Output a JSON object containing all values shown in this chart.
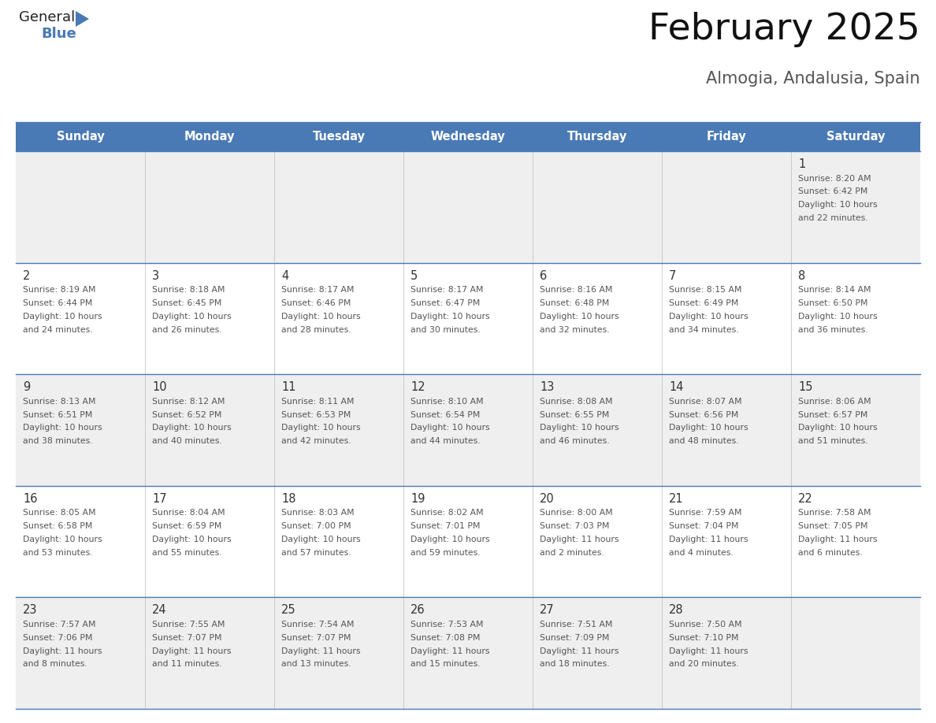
{
  "title": "February 2025",
  "subtitle": "Almogia, Andalusia, Spain",
  "header_color": "#4a7ab5",
  "header_text_color": "#ffffff",
  "day_names": [
    "Sunday",
    "Monday",
    "Tuesday",
    "Wednesday",
    "Thursday",
    "Friday",
    "Saturday"
  ],
  "row_colors": [
    "#efefef",
    "#ffffff",
    "#efefef",
    "#ffffff",
    "#efefef"
  ],
  "border_color": "#4a7ab5",
  "text_color": "#555555",
  "day_num_color": "#333333",
  "calendar_data": [
    [
      null,
      null,
      null,
      null,
      null,
      null,
      {
        "day": "1",
        "sunrise": "8:20 AM",
        "sunset": "6:42 PM",
        "daylight": "10 hours",
        "daylight2": "and 22 minutes."
      }
    ],
    [
      {
        "day": "2",
        "sunrise": "8:19 AM",
        "sunset": "6:44 PM",
        "daylight": "10 hours",
        "daylight2": "and 24 minutes."
      },
      {
        "day": "3",
        "sunrise": "8:18 AM",
        "sunset": "6:45 PM",
        "daylight": "10 hours",
        "daylight2": "and 26 minutes."
      },
      {
        "day": "4",
        "sunrise": "8:17 AM",
        "sunset": "6:46 PM",
        "daylight": "10 hours",
        "daylight2": "and 28 minutes."
      },
      {
        "day": "5",
        "sunrise": "8:17 AM",
        "sunset": "6:47 PM",
        "daylight": "10 hours",
        "daylight2": "and 30 minutes."
      },
      {
        "day": "6",
        "sunrise": "8:16 AM",
        "sunset": "6:48 PM",
        "daylight": "10 hours",
        "daylight2": "and 32 minutes."
      },
      {
        "day": "7",
        "sunrise": "8:15 AM",
        "sunset": "6:49 PM",
        "daylight": "10 hours",
        "daylight2": "and 34 minutes."
      },
      {
        "day": "8",
        "sunrise": "8:14 AM",
        "sunset": "6:50 PM",
        "daylight": "10 hours",
        "daylight2": "and 36 minutes."
      }
    ],
    [
      {
        "day": "9",
        "sunrise": "8:13 AM",
        "sunset": "6:51 PM",
        "daylight": "10 hours",
        "daylight2": "and 38 minutes."
      },
      {
        "day": "10",
        "sunrise": "8:12 AM",
        "sunset": "6:52 PM",
        "daylight": "10 hours",
        "daylight2": "and 40 minutes."
      },
      {
        "day": "11",
        "sunrise": "8:11 AM",
        "sunset": "6:53 PM",
        "daylight": "10 hours",
        "daylight2": "and 42 minutes."
      },
      {
        "day": "12",
        "sunrise": "8:10 AM",
        "sunset": "6:54 PM",
        "daylight": "10 hours",
        "daylight2": "and 44 minutes."
      },
      {
        "day": "13",
        "sunrise": "8:08 AM",
        "sunset": "6:55 PM",
        "daylight": "10 hours",
        "daylight2": "and 46 minutes."
      },
      {
        "day": "14",
        "sunrise": "8:07 AM",
        "sunset": "6:56 PM",
        "daylight": "10 hours",
        "daylight2": "and 48 minutes."
      },
      {
        "day": "15",
        "sunrise": "8:06 AM",
        "sunset": "6:57 PM",
        "daylight": "10 hours",
        "daylight2": "and 51 minutes."
      }
    ],
    [
      {
        "day": "16",
        "sunrise": "8:05 AM",
        "sunset": "6:58 PM",
        "daylight": "10 hours",
        "daylight2": "and 53 minutes."
      },
      {
        "day": "17",
        "sunrise": "8:04 AM",
        "sunset": "6:59 PM",
        "daylight": "10 hours",
        "daylight2": "and 55 minutes."
      },
      {
        "day": "18",
        "sunrise": "8:03 AM",
        "sunset": "7:00 PM",
        "daylight": "10 hours",
        "daylight2": "and 57 minutes."
      },
      {
        "day": "19",
        "sunrise": "8:02 AM",
        "sunset": "7:01 PM",
        "daylight": "10 hours",
        "daylight2": "and 59 minutes."
      },
      {
        "day": "20",
        "sunrise": "8:00 AM",
        "sunset": "7:03 PM",
        "daylight": "11 hours",
        "daylight2": "and 2 minutes."
      },
      {
        "day": "21",
        "sunrise": "7:59 AM",
        "sunset": "7:04 PM",
        "daylight": "11 hours",
        "daylight2": "and 4 minutes."
      },
      {
        "day": "22",
        "sunrise": "7:58 AM",
        "sunset": "7:05 PM",
        "daylight": "11 hours",
        "daylight2": "and 6 minutes."
      }
    ],
    [
      {
        "day": "23",
        "sunrise": "7:57 AM",
        "sunset": "7:06 PM",
        "daylight": "11 hours",
        "daylight2": "and 8 minutes."
      },
      {
        "day": "24",
        "sunrise": "7:55 AM",
        "sunset": "7:07 PM",
        "daylight": "11 hours",
        "daylight2": "and 11 minutes."
      },
      {
        "day": "25",
        "sunrise": "7:54 AM",
        "sunset": "7:07 PM",
        "daylight": "11 hours",
        "daylight2": "and 13 minutes."
      },
      {
        "day": "26",
        "sunrise": "7:53 AM",
        "sunset": "7:08 PM",
        "daylight": "11 hours",
        "daylight2": "and 15 minutes."
      },
      {
        "day": "27",
        "sunrise": "7:51 AM",
        "sunset": "7:09 PM",
        "daylight": "11 hours",
        "daylight2": "and 18 minutes."
      },
      {
        "day": "28",
        "sunrise": "7:50 AM",
        "sunset": "7:10 PM",
        "daylight": "11 hours",
        "daylight2": "and 20 minutes."
      },
      null
    ]
  ],
  "logo_general_color": "#222222",
  "logo_blue_color": "#4a7ab5",
  "logo_triangle_color": "#4a7ab5"
}
